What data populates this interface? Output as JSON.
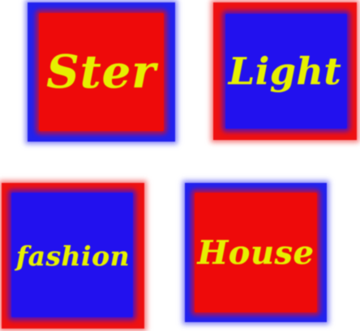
{
  "colors": {
    "red": "#ee0a0a",
    "blue": "#2211ee",
    "text_yellow": "#e6f000",
    "background": "#ffffff"
  },
  "tiles": [
    {
      "label": "Ster",
      "border_color": "blue",
      "fill_color": "red"
    },
    {
      "label": "Light",
      "border_color": "red",
      "fill_color": "blue"
    },
    {
      "label": "fashion",
      "border_color": "red",
      "fill_color": "blue"
    },
    {
      "label": "House",
      "border_color": "blue",
      "fill_color": "red"
    }
  ]
}
